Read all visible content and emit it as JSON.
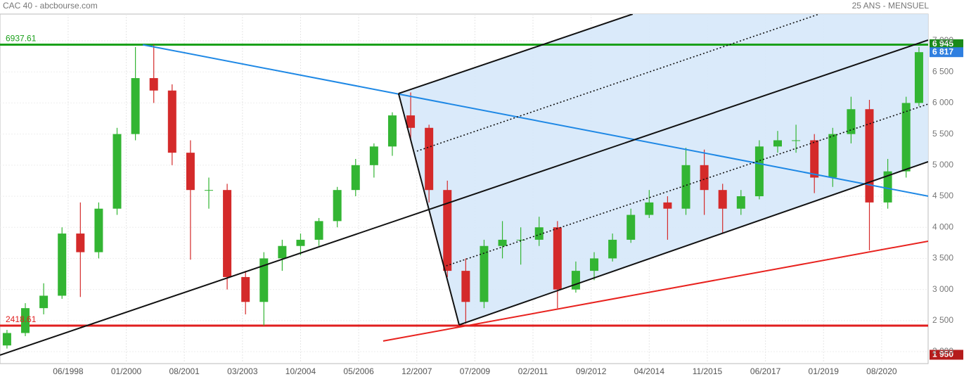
{
  "chart_data": {
    "type": "candlestick",
    "title": "CAC 40 - abcbourse.com",
    "subtitle": "25 ANS - MENSUEL",
    "xlim": [
      1996.56,
      2021.85
    ],
    "ylim": [
      1808,
      7430
    ],
    "xticks": [
      {
        "value": 1998.417,
        "label": "06/1998"
      },
      {
        "value": 2000.0,
        "label": "01/2000"
      },
      {
        "value": 2001.583,
        "label": "08/2001"
      },
      {
        "value": 2003.167,
        "label": "03/2003"
      },
      {
        "value": 2004.75,
        "label": "10/2004"
      },
      {
        "value": 2006.333,
        "label": "05/2006"
      },
      {
        "value": 2007.917,
        "label": "12/2007"
      },
      {
        "value": 2009.5,
        "label": "07/2009"
      },
      {
        "value": 2011.083,
        "label": "02/2011"
      },
      {
        "value": 2012.667,
        "label": "09/2012"
      },
      {
        "value": 2014.25,
        "label": "04/2014"
      },
      {
        "value": 2015.833,
        "label": "11/2015"
      },
      {
        "value": 2017.417,
        "label": "06/2017"
      },
      {
        "value": 2019.0,
        "label": "01/2019"
      },
      {
        "value": 2020.583,
        "label": "08/2020"
      }
    ],
    "yticks": [
      {
        "value": 2000,
        "label": "2 000"
      },
      {
        "value": 2500,
        "label": "2 500"
      },
      {
        "value": 3000,
        "label": "3 000"
      },
      {
        "value": 3500,
        "label": "3 500"
      },
      {
        "value": 4000,
        "label": "4 000"
      },
      {
        "value": 4500,
        "label": "4 500"
      },
      {
        "value": 5000,
        "label": "5 000"
      },
      {
        "value": 5500,
        "label": "5 500"
      },
      {
        "value": 6000,
        "label": "6 000"
      },
      {
        "value": 6500,
        "label": "6 500"
      },
      {
        "value": 7000,
        "label": "7 000"
      }
    ],
    "grid": true,
    "up_color": "#33b533",
    "down_color": "#d42a2a",
    "x": [
      1996.75,
      1997.25,
      1997.75,
      1998.25,
      1998.75,
      1999.25,
      1999.75,
      2000.25,
      2000.75,
      2001.25,
      2001.75,
      2002.25,
      2002.75,
      2003.25,
      2003.75,
      2004.25,
      2004.75,
      2005.25,
      2005.75,
      2006.25,
      2006.75,
      2007.25,
      2007.75,
      2008.25,
      2008.75,
      2009.25,
      2009.75,
      2010.25,
      2010.75,
      2011.25,
      2011.75,
      2012.25,
      2012.75,
      2013.25,
      2013.75,
      2014.25,
      2014.75,
      2015.25,
      2015.75,
      2016.25,
      2016.75,
      2017.25,
      2017.75,
      2018.25,
      2018.75,
      2019.25,
      2019.75,
      2020.25,
      2020.75,
      2021.25,
      2021.6
    ],
    "open": [
      2100,
      2300,
      2700,
      2900,
      3900,
      3600,
      4300,
      5500,
      6400,
      6200,
      5200,
      4600,
      4600,
      3200,
      2800,
      3500,
      3700,
      3800,
      4100,
      4600,
      5000,
      5300,
      5800,
      5600,
      4600,
      3300,
      2800,
      3700,
      3800,
      3800,
      4000,
      3000,
      3300,
      3500,
      3800,
      4200,
      4400,
      4300,
      5000,
      4600,
      4300,
      4500,
      5300,
      5400,
      5400,
      4800,
      5500,
      5900,
      4400,
      4900,
      6000
    ],
    "high": [
      2350,
      2780,
      3100,
      4000,
      4400,
      4400,
      5600,
      6900,
      6940,
      6300,
      5400,
      4800,
      4700,
      3300,
      3600,
      3800,
      3900,
      4150,
      4650,
      5100,
      5350,
      5850,
      6170,
      5650,
      4750,
      3500,
      3800,
      4100,
      4000,
      4170,
      4100,
      3450,
      3600,
      3900,
      4300,
      4600,
      4500,
      5280,
      5250,
      4700,
      4600,
      5400,
      5550,
      5650,
      5500,
      5600,
      6100,
      6050,
      5100,
      6100,
      6900
    ],
    "low": [
      2050,
      2250,
      2600,
      2850,
      2880,
      3500,
      4200,
      5400,
      6000,
      5000,
      3480,
      4300,
      3000,
      2600,
      2420,
      3300,
      3550,
      3700,
      4000,
      4500,
      4800,
      5150,
      5400,
      4400,
      3200,
      2450,
      2700,
      3500,
      3400,
      3700,
      2700,
      2950,
      3150,
      3450,
      3750,
      4150,
      3800,
      4200,
      4200,
      3900,
      4200,
      4450,
      5200,
      5200,
      4550,
      4650,
      5350,
      3630,
      4300,
      4800,
      5950
    ],
    "close": [
      2300,
      2700,
      2900,
      3900,
      3600,
      4300,
      5500,
      6400,
      6200,
      5200,
      4600,
      4600,
      3200,
      2800,
      3500,
      3700,
      3800,
      4100,
      4600,
      5000,
      5300,
      5800,
      5600,
      4600,
      3300,
      2800,
      3700,
      3800,
      3800,
      4000,
      3000,
      3300,
      3500,
      3800,
      4200,
      4400,
      4300,
      5000,
      4600,
      4300,
      4500,
      5300,
      5400,
      5400,
      4800,
      5500,
      5900,
      4400,
      4900,
      6000,
      6817
    ],
    "channel_fill": {
      "color": "#d6e8fa",
      "points": [
        [
          2007.42,
          6152
        ],
        [
          2009.07,
          2431
        ],
        [
          2021.85,
          5055
        ],
        [
          2021.85,
          7430
        ],
        [
          2013.8,
          7430
        ]
      ]
    },
    "trendlines": [
      {
        "color": "#1e88e5",
        "style": "solid",
        "points": [
          [
            2000.45,
            6937
          ],
          [
            2021.85,
            4501
          ]
        ]
      },
      {
        "color": "#111111",
        "style": "solid",
        "points": [
          [
            1996.56,
            1945
          ],
          [
            2021.85,
            7012
          ]
        ]
      },
      {
        "color": "#111111",
        "style": "solid",
        "points": [
          [
            2007.42,
            6152
          ],
          [
            2009.07,
            2431
          ]
        ]
      },
      {
        "color": "#111111",
        "style": "solid",
        "points": [
          [
            2007.42,
            6152
          ],
          [
            2013.8,
            7430
          ]
        ]
      },
      {
        "color": "#111111",
        "style": "solid",
        "points": [
          [
            2009.07,
            2431
          ],
          [
            2021.85,
            5055
          ]
        ]
      },
      {
        "color": "#111111",
        "style": "dotted",
        "points": [
          [
            2007.92,
            5225
          ],
          [
            2018.88,
            7430
          ]
        ]
      },
      {
        "color": "#111111",
        "style": "dotted",
        "points": [
          [
            2008.72,
            3381
          ],
          [
            2021.85,
            5982
          ]
        ]
      },
      {
        "color": "#e8221e",
        "style": "solid",
        "points": [
          [
            2007.0,
            2171
          ],
          [
            2021.85,
            3777
          ]
        ]
      }
    ],
    "hlines": [
      {
        "value": 6937.61,
        "label": "6937.61",
        "color": "#1aa01a"
      },
      {
        "value": 2418.61,
        "label": "2418.61",
        "color": "#e01e1e"
      }
    ],
    "price_tags": [
      {
        "value": 6945,
        "label": "6 945",
        "color": "#1a8a1a"
      },
      {
        "value": 6817,
        "label": "6 817",
        "color": "#2f7fe0"
      },
      {
        "value": 1950,
        "label": "1 950",
        "color": "#b51c1c"
      }
    ]
  }
}
